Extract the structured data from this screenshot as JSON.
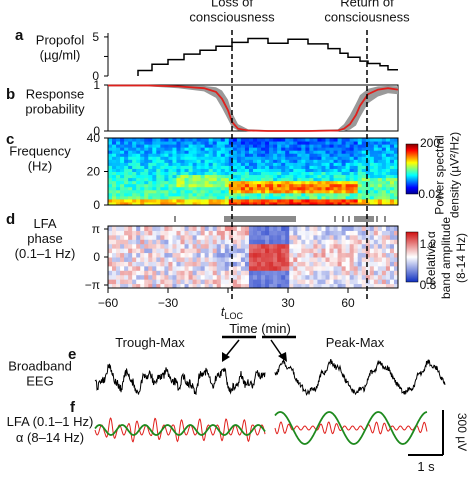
{
  "annotations": {
    "loc": "Loss of\nconsciousness",
    "roc": "Return of\nconsciousness",
    "t_loc_main": "t",
    "t_loc_sub": "LOC",
    "time_label": "Time (min)"
  },
  "panels": {
    "a": {
      "letter": "a",
      "label": "Propofol\n(µg/ml)"
    },
    "b": {
      "letter": "b",
      "label": "Response\nprobability"
    },
    "c": {
      "letter": "c",
      "label": "Frequency\n(Hz)",
      "colorbar_title": "Power spectral\ndensity (µV²/Hz)",
      "cb_max": "200",
      "cb_min": "0.02"
    },
    "d": {
      "letter": "d",
      "label": "LFA\nphase\n(0.1–1 Hz)",
      "colorbar_title": "Relative α\nband amplitude\n(8-14 Hz)",
      "cb_max": "1.2",
      "cb_min": "0.8"
    },
    "e": {
      "letter": "e",
      "label": "Broadband\nEEG",
      "trough_title": "Trough-Max",
      "peak_title": "Peak-Max"
    },
    "f": {
      "letter": "f",
      "lfa_label": "LFA (0.1–1 Hz)",
      "alpha_label": "α (8–14 Hz)",
      "scale_v": "300 µV",
      "scale_t": "1 s"
    }
  },
  "colors": {
    "response": "#e0201c",
    "band": "#9a9a9a",
    "lfa": "#1e8a1e",
    "alpha": "#e0201c",
    "eeg": "#000000"
  },
  "chart_data": [
    {
      "panel": "a",
      "type": "line",
      "ylabel": "Propofol (µg/ml)",
      "yticks": [
        0,
        2.5,
        5
      ],
      "ylim": [
        0,
        5.5
      ],
      "xlim": [
        -60,
        85
      ],
      "series": [
        {
          "x": [
            -45,
            -45,
            -38,
            -38,
            -30,
            -30,
            -22,
            -22,
            -14,
            -14,
            -6,
            -6,
            2,
            2,
            10,
            10,
            20,
            20,
            30,
            30,
            40,
            40,
            50,
            50,
            56,
            56,
            60,
            60,
            66,
            66,
            70,
            70,
            76,
            76,
            80,
            80,
            85
          ],
          "y": [
            0,
            0.7,
            0.7,
            1.5,
            1.5,
            2.1,
            2.1,
            2.8,
            2.8,
            3.3,
            3.3,
            3.8,
            3.8,
            4.3,
            4.3,
            4.8,
            4.8,
            4.2,
            4.2,
            4.7,
            4.7,
            4.1,
            4.1,
            3.5,
            3.5,
            2.9,
            2.9,
            2.4,
            2.4,
            1.9,
            1.9,
            1.6,
            1.6,
            1.3,
            1.3,
            0.8,
            0.8
          ]
        }
      ]
    },
    {
      "panel": "b",
      "type": "line",
      "ylabel": "Response probability",
      "yticks": [
        0,
        1
      ],
      "ylim": [
        0,
        1
      ],
      "xlim": [
        -60,
        85
      ],
      "series": [
        {
          "x": [
            -60,
            -40,
            -25,
            -12,
            -6,
            -3,
            0,
            2,
            5,
            10,
            20,
            40,
            55,
            58,
            61,
            64,
            66,
            70,
            75,
            80,
            85
          ],
          "y": [
            0.99,
            0.99,
            0.97,
            0.93,
            0.85,
            0.7,
            0.45,
            0.2,
            0.05,
            0.01,
            0.0,
            0.0,
            0.01,
            0.05,
            0.15,
            0.35,
            0.55,
            0.8,
            0.9,
            0.93,
            0.9
          ],
          "lower": [
            0.97,
            0.97,
            0.93,
            0.86,
            0.72,
            0.5,
            0.25,
            0.08,
            0.01,
            0.0,
            0.0,
            0.0,
            0.0,
            0.0,
            0.03,
            0.12,
            0.3,
            0.6,
            0.75,
            0.82,
            0.8
          ],
          "upper": [
            1,
            1,
            0.99,
            0.98,
            0.95,
            0.88,
            0.68,
            0.4,
            0.15,
            0.04,
            0.02,
            0.02,
            0.04,
            0.15,
            0.35,
            0.6,
            0.78,
            0.92,
            0.97,
            0.98,
            0.97
          ]
        }
      ]
    },
    {
      "panel": "c",
      "type": "heatmap",
      "ylabel": "Frequency (Hz)",
      "yticks": [
        0,
        20,
        40
      ],
      "ylim": [
        0,
        40
      ],
      "xlim": [
        -60,
        85
      ],
      "zlim": [
        0.02,
        200
      ],
      "colormap": "jet"
    },
    {
      "panel": "d",
      "type": "heatmap",
      "ylabel": "LFA phase (0.1–1 Hz)",
      "yticklabels": [
        "π",
        "0",
        "−π"
      ],
      "ylim": [
        -3.14,
        3.14
      ],
      "xlim": [
        -60,
        85
      ],
      "zlim": [
        0.8,
        1.2
      ],
      "colormap": "bwr",
      "xticks": [
        -60,
        -30,
        0,
        30,
        60
      ],
      "xticklabels": [
        "−60",
        "−30",
        "",
        "30",
        "60"
      ],
      "xlabel": "Time (min)"
    }
  ]
}
